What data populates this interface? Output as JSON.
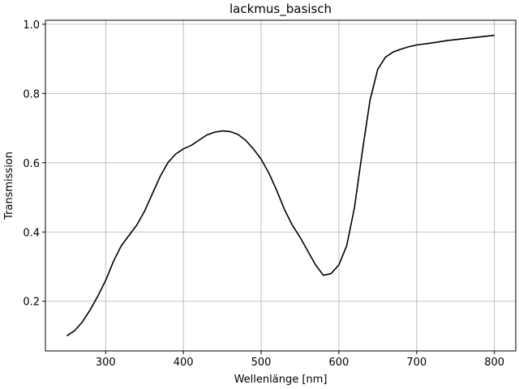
{
  "chart_data": {
    "type": "line",
    "title": "lackmus_basisch",
    "x_label": "Wellenlänge [nm]",
    "y_label": "Transmission",
    "x": [
      250,
      260,
      270,
      280,
      290,
      300,
      310,
      320,
      330,
      340,
      350,
      360,
      370,
      380,
      390,
      400,
      410,
      420,
      430,
      440,
      450,
      460,
      470,
      480,
      490,
      500,
      510,
      520,
      530,
      540,
      550,
      560,
      570,
      580,
      590,
      600,
      610,
      620,
      630,
      640,
      650,
      660,
      670,
      680,
      690,
      700,
      720,
      740,
      760,
      780,
      800
    ],
    "values": [
      0.1,
      0.115,
      0.14,
      0.175,
      0.215,
      0.26,
      0.315,
      0.36,
      0.39,
      0.42,
      0.46,
      0.51,
      0.56,
      0.6,
      0.625,
      0.64,
      0.65,
      0.665,
      0.68,
      0.688,
      0.692,
      0.69,
      0.682,
      0.665,
      0.64,
      0.61,
      0.57,
      0.52,
      0.465,
      0.42,
      0.385,
      0.345,
      0.305,
      0.275,
      0.28,
      0.305,
      0.36,
      0.47,
      0.63,
      0.78,
      0.87,
      0.905,
      0.92,
      0.928,
      0.935,
      0.94,
      0.946,
      0.953,
      0.958,
      0.963,
      0.968
    ],
    "color": "#000000",
    "xlim": [
      222.5,
      827.5
    ],
    "xticks": [
      300,
      400,
      500,
      600,
      700,
      800
    ],
    "ylim": [
      0.0566,
      1.0114
    ],
    "yticks": [
      0.2,
      0.4,
      0.6,
      0.8,
      {
        "value": 1.0,
        "label": "1.0"
      }
    ],
    "grid": true
  }
}
